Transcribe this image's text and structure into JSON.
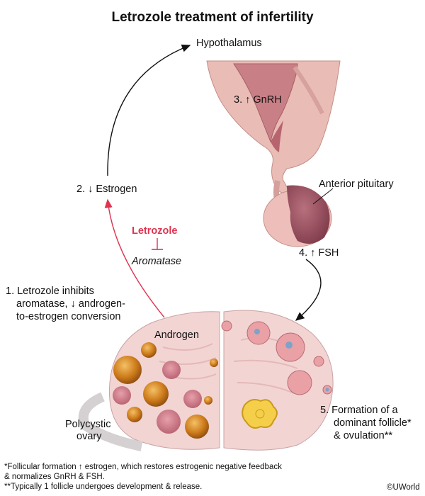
{
  "title": "Letrozole treatment of infertility",
  "labels": {
    "hypothalamus": "Hypothalamus",
    "gnrh": "3. ↑ GnRH",
    "anterior_pituitary": "Anterior pituitary",
    "fsh": "4. ↑ FSH",
    "estrogen": "2. ↓ Estrogen",
    "letrozole": "Letrozole",
    "aromatase": "Aromatase",
    "step1_line1": "1. Letrozole inhibits",
    "step1_line2": "aromatase, ↓ androgen-",
    "step1_line3": "to-estrogen conversion",
    "androgen": "Androgen",
    "polycystic_line1": "Polycystic",
    "polycystic_line2": "ovary",
    "step5_line1": "5.  Formation of a",
    "step5_line2": "dominant follicle*",
    "step5_line3": "& ovulation**"
  },
  "footnotes": {
    "line1": "*Follicular formation ↑ estrogen, which restores estrogenic negative feedback",
    "line2": "& normalizes GnRH & FSH.",
    "line3": "**Typically 1 follicle undergoes development & release."
  },
  "copyright": "©UWorld",
  "colors": {
    "inhibition": "#e0334f",
    "tissue": "#e9b7b0",
    "pituitary": "#a8606e",
    "follicle": "#d98a1e"
  }
}
